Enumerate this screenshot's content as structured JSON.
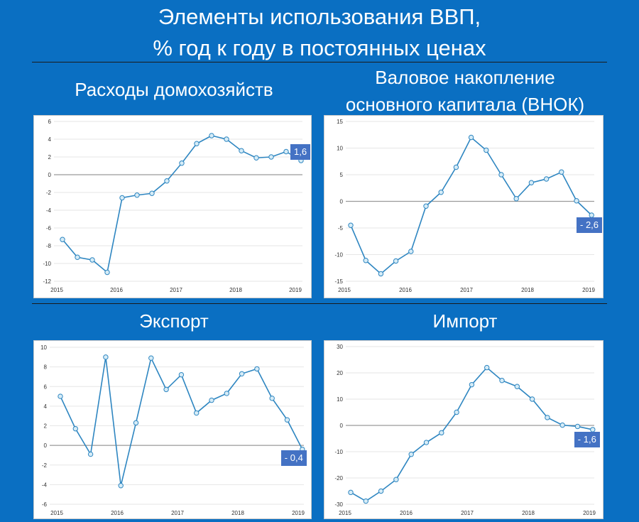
{
  "header": {
    "line1": "Элементы использования ВВП,",
    "line2": "% год к году в постоянных ценах"
  },
  "colors": {
    "background": "#0a6fc2",
    "series": "#2e86c1",
    "marker_fill": "#d6ecf7",
    "label_bg": "#4472c4"
  },
  "chart_data": [
    {
      "type": "line",
      "title": "Расходы домохозяйств",
      "x_tick_labels": [
        "2015",
        "2016",
        "2017",
        "2018",
        "2019"
      ],
      "ylim": [
        -12,
        6
      ],
      "y_ticks": [
        -12,
        -10,
        -8,
        -6,
        -4,
        -2,
        0,
        2,
        4,
        6
      ],
      "y_tick_labels": [
        "-12",
        "-10",
        "-8",
        "-6",
        "-4",
        "-2",
        "0",
        "2",
        "4",
        "6"
      ],
      "grid": true,
      "values": [
        -7.3,
        -9.3,
        -9.6,
        -11.0,
        -2.6,
        -2.3,
        -2.1,
        -0.7,
        1.3,
        3.5,
        4.4,
        4.0,
        2.7,
        1.9,
        2.0,
        2.6,
        1.6
      ],
      "end_label": "1,6"
    },
    {
      "type": "line",
      "title": "Валовое накопление основного капитала (ВНОК)",
      "title_line1": "Валовое накопление",
      "title_line2": "основного капитала (ВНОК)",
      "x_tick_labels": [
        "2015",
        "2016",
        "2017",
        "2018",
        "2019"
      ],
      "ylim": [
        -15,
        15
      ],
      "y_ticks": [
        -15,
        -10,
        -5,
        0,
        5,
        10,
        15
      ],
      "y_tick_labels": [
        "-15",
        "-10",
        "-5",
        "0",
        "5",
        "10",
        "15"
      ],
      "grid": true,
      "values": [
        -4.5,
        -11.1,
        -13.6,
        -11.2,
        -9.4,
        -0.9,
        1.7,
        6.4,
        12.0,
        9.6,
        5.0,
        0.5,
        3.5,
        4.2,
        5.5,
        0.1,
        -2.6
      ],
      "end_label": "- 2,6"
    },
    {
      "type": "line",
      "title": "Экспорт",
      "x_tick_labels": [
        "2015",
        "2016",
        "2017",
        "2018",
        "2019"
      ],
      "ylim": [
        -6,
        10
      ],
      "y_ticks": [
        -6,
        -4,
        -2,
        0,
        2,
        4,
        6,
        8,
        10
      ],
      "y_tick_labels": [
        "-6",
        "-4",
        "-2",
        "0",
        "2",
        "4",
        "6",
        "8",
        "10"
      ],
      "grid": true,
      "values": [
        5.0,
        1.7,
        -0.9,
        9.0,
        -4.1,
        2.3,
        8.9,
        5.7,
        7.2,
        3.3,
        4.6,
        5.3,
        7.3,
        7.8,
        4.8,
        2.6,
        -0.4
      ],
      "end_label": "- 0,4"
    },
    {
      "type": "line",
      "title": "Импорт",
      "x_tick_labels": [
        "2015",
        "2016",
        "2017",
        "2018",
        "2019"
      ],
      "ylim": [
        -30,
        30
      ],
      "y_ticks": [
        -30,
        -20,
        -10,
        0,
        10,
        20,
        30
      ],
      "y_tick_labels": [
        "-30",
        "-20",
        "-10",
        "0",
        "10",
        "20",
        "30"
      ],
      "grid": true,
      "values": [
        -25.5,
        -28.8,
        -25.0,
        -20.6,
        -11.0,
        -6.5,
        -2.8,
        5.0,
        15.5,
        22.0,
        17.1,
        14.8,
        10.0,
        3.0,
        0.1,
        -0.4,
        -1.6
      ],
      "end_label": "- 1,6"
    }
  ]
}
